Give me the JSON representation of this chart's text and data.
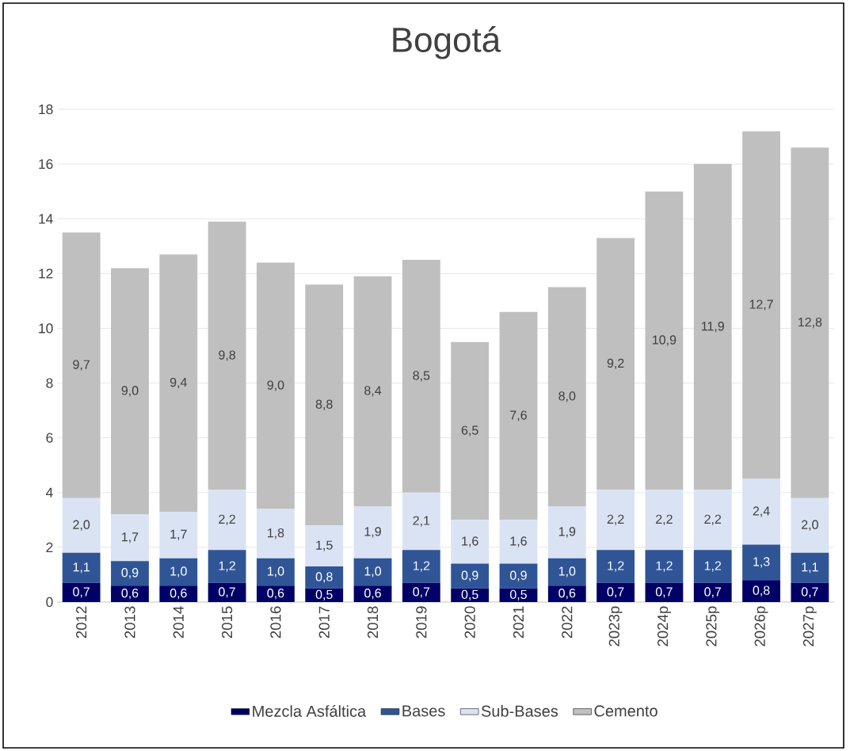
{
  "chart_data": {
    "type": "bar",
    "stacked": true,
    "title": "Bogotá",
    "categories": [
      "2012",
      "2013",
      "2014",
      "2015",
      "2016",
      "2017",
      "2018",
      "2019",
      "2020",
      "2021",
      "2022",
      "2023p",
      "2024p",
      "2025p",
      "2026p",
      "2027p"
    ],
    "series": [
      {
        "name": "Mezcla Asfáltica",
        "color": "#000066",
        "values": [
          0.7,
          0.6,
          0.6,
          0.7,
          0.6,
          0.5,
          0.6,
          0.7,
          0.5,
          0.5,
          0.6,
          0.7,
          0.7,
          0.7,
          0.8,
          0.7
        ],
        "value_labels": [
          "0,7",
          "0,6",
          "0,6",
          "0,7",
          "0,6",
          "0,5",
          "0,6",
          "0,7",
          "0,5",
          "0,5",
          "0,6",
          "0,7",
          "0,7",
          "0,7",
          "0,8",
          "0,7"
        ]
      },
      {
        "name": "Bases",
        "color": "#2f5597",
        "values": [
          1.1,
          0.9,
          1.0,
          1.2,
          1.0,
          0.8,
          1.0,
          1.2,
          0.9,
          0.9,
          1.0,
          1.2,
          1.2,
          1.2,
          1.3,
          1.1
        ],
        "value_labels": [
          "1,1",
          "0,9",
          "1,0",
          "1,2",
          "1,0",
          "0,8",
          "1,0",
          "1,2",
          "0,9",
          "0,9",
          "1,0",
          "1,2",
          "1,2",
          "1,2",
          "1,3",
          "1,1"
        ]
      },
      {
        "name": "Sub-Bases",
        "color": "#dae3f3",
        "values": [
          2.0,
          1.7,
          1.7,
          2.2,
          1.8,
          1.5,
          1.9,
          2.1,
          1.6,
          1.6,
          1.9,
          2.2,
          2.2,
          2.2,
          2.4,
          2.0
        ],
        "value_labels": [
          "2,0",
          "1,7",
          "1,7",
          "2,2",
          "1,8",
          "1,5",
          "1,9",
          "2,1",
          "1,6",
          "1,6",
          "1,9",
          "2,2",
          "2,2",
          "2,2",
          "2,4",
          "2,0"
        ]
      },
      {
        "name": "Cemento",
        "color": "#bfbfbf",
        "values": [
          9.7,
          9.0,
          9.4,
          9.8,
          9.0,
          8.8,
          8.4,
          8.5,
          6.5,
          7.6,
          8.0,
          9.2,
          10.9,
          11.9,
          12.7,
          12.8
        ],
        "value_labels": [
          "9,7",
          "9,0",
          "9,4",
          "9,8",
          "9,0",
          "8,8",
          "8,4",
          "8,5",
          "6,5",
          "7,6",
          "8,0",
          "9,2",
          "10,9",
          "11,9",
          "12,7",
          "12,8"
        ]
      }
    ],
    "ylim": [
      0,
      18
    ],
    "yticks": [
      0,
      2,
      4,
      6,
      8,
      10,
      12,
      14,
      16,
      18
    ],
    "grid": "y",
    "legend": "bottom"
  }
}
